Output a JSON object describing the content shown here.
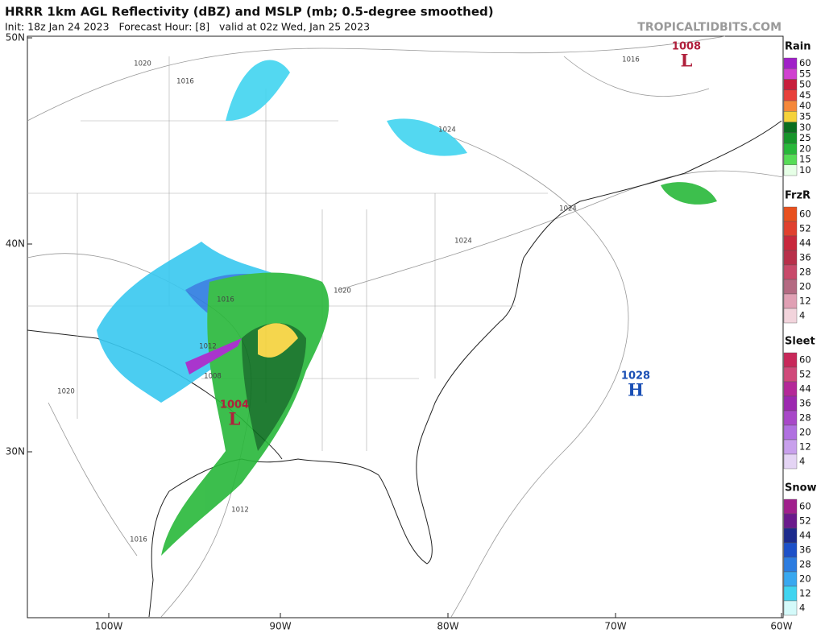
{
  "header": {
    "title": "HRRR 1km AGL Reflectivity (dBZ) and MSLP (mb; 0.5-degree smoothed)",
    "subtitle": "Init: 18z Jan 24 2023   Forecast Hour: [8]   valid at 02z Wed, Jan 25 2023",
    "site": "TROPICALTIDBITS.COM"
  },
  "map": {
    "lat_labels": [
      "50N",
      "40N",
      "30N"
    ],
    "lon_labels": [
      "100W",
      "90W",
      "80W",
      "70W",
      "60W"
    ],
    "pressure_centers": [
      {
        "value": "1008",
        "letter": "L",
        "color": "#b0203c"
      },
      {
        "value": "1028",
        "letter": "H",
        "color": "#1a4fb5"
      },
      {
        "value": "1004",
        "letter": "L",
        "color": "#b0203c"
      }
    ],
    "isobar_labels": [
      "1020",
      "1016",
      "1016",
      "1024",
      "1024",
      "1024",
      "1020",
      "1016",
      "1012",
      "1008",
      "1020",
      "1012",
      "1016"
    ]
  },
  "legends": [
    {
      "title": "Rain",
      "ticks": [
        "60",
        "55",
        "50",
        "45",
        "40",
        "35",
        "30",
        "25",
        "20",
        "15",
        "10"
      ],
      "colors": [
        "#a020c8",
        "#d040d0",
        "#c81e3c",
        "#e8403a",
        "#f5883a",
        "#f5d23a",
        "#0a6e1e",
        "#16952a",
        "#28b83a",
        "#56dc56",
        "#e6ffe6"
      ]
    },
    {
      "title": "FrzR",
      "ticks": [
        "60",
        "52",
        "44",
        "36",
        "28",
        "20",
        "12",
        "4"
      ],
      "colors": [
        "#e8501e",
        "#e0402e",
        "#c8283c",
        "#b8304a",
        "#c84a6a",
        "#b46a82",
        "#e0a0b4",
        "#f2d4dc"
      ]
    },
    {
      "title": "Sleet",
      "ticks": [
        "60",
        "52",
        "44",
        "36",
        "28",
        "20",
        "12",
        "4"
      ],
      "colors": [
        "#c8285a",
        "#d04a7a",
        "#b42898",
        "#9c28b0",
        "#a848c8",
        "#b070e0",
        "#c8a0ec",
        "#e4d4f4"
      ]
    },
    {
      "title": "Snow",
      "ticks": [
        "60",
        "52",
        "44",
        "36",
        "28",
        "20",
        "12",
        "4"
      ],
      "colors": [
        "#a0208c",
        "#6a1a8c",
        "#1c2a8c",
        "#1c50c8",
        "#2c7ce0",
        "#38a8f0",
        "#40d4f0",
        "#d4fafa"
      ]
    }
  ]
}
